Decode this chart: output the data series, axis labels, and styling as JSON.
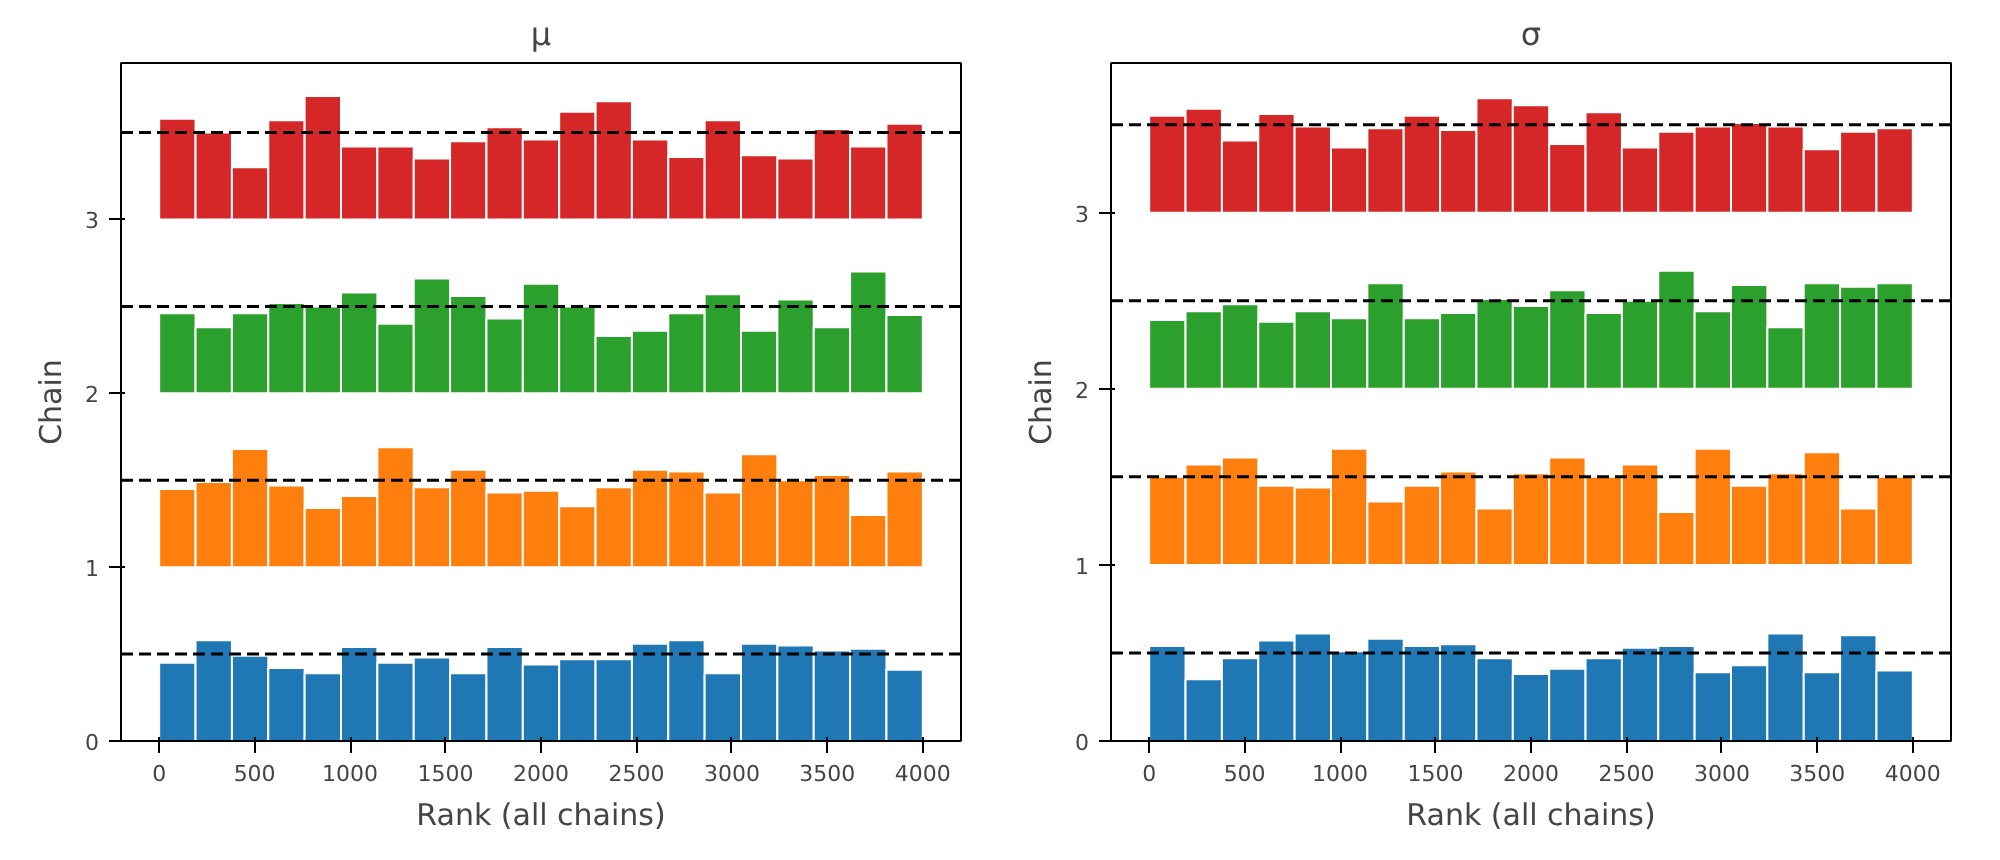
{
  "chart_data": [
    {
      "type": "bar",
      "title": "μ",
      "xlabel": "Rank (all chains)",
      "ylabel": "Chain",
      "xlim": [
        -200,
        4200
      ],
      "xticks": [
        0,
        500,
        1000,
        1500,
        2000,
        2500,
        3000,
        3500,
        4000
      ],
      "ylim": [
        0,
        3.9
      ],
      "yticks": [
        0,
        1,
        2,
        3
      ],
      "grid": false,
      "x": [
        95.2,
        285.7,
        476.2,
        666.7,
        857.1,
        1047.6,
        1238.1,
        1428.6,
        1619.0,
        1809.5,
        2000.0,
        2190.5,
        2381.0,
        2571.4,
        2761.9,
        2952.4,
        3142.9,
        3333.3,
        3523.8,
        3714.3,
        3904.8
      ],
      "series": [
        {
          "color": "#1f77b4",
          "base": [
            0,
            0,
            0,
            0,
            0,
            0,
            0,
            0,
            0,
            0,
            0,
            0,
            0,
            0,
            0,
            0,
            0,
            0,
            0,
            0,
            0
          ],
          "values": [
            0.45,
            0.58,
            0.49,
            0.42,
            0.39,
            0.54,
            0.45,
            0.48,
            0.39,
            0.54,
            0.44,
            0.47,
            0.47,
            0.56,
            0.58,
            0.39,
            0.56,
            0.55,
            0.52,
            0.53,
            0.41
          ]
        },
        {
          "color": "#ff7f0e",
          "base": [
            1,
            1,
            1,
            1,
            1,
            1,
            1,
            1,
            1,
            1,
            1,
            1,
            1,
            1,
            1,
            1,
            1,
            1,
            1,
            1,
            1
          ],
          "values": [
            0.45,
            0.49,
            0.68,
            0.47,
            0.34,
            0.41,
            0.69,
            0.46,
            0.56,
            0.43,
            0.44,
            0.35,
            0.46,
            0.56,
            0.55,
            0.43,
            0.65,
            0.5,
            0.53,
            0.3,
            0.55
          ]
        },
        {
          "color": "#2ca02c",
          "base": [
            2,
            2,
            2,
            2,
            2,
            2,
            2,
            2,
            2,
            2,
            2,
            2,
            2,
            2,
            2,
            2,
            2,
            2,
            2,
            2,
            2
          ],
          "values": [
            0.46,
            0.38,
            0.46,
            0.52,
            0.5,
            0.58,
            0.4,
            0.66,
            0.56,
            0.43,
            0.63,
            0.5,
            0.33,
            0.36,
            0.46,
            0.57,
            0.36,
            0.54,
            0.38,
            0.7,
            0.45
          ]
        },
        {
          "color": "#d62728",
          "base": [
            3,
            3,
            3,
            3,
            3,
            3,
            3,
            3,
            3,
            3,
            3,
            3,
            3,
            3,
            3,
            3,
            3,
            3,
            3,
            3,
            3
          ],
          "values": [
            0.58,
            0.5,
            0.3,
            0.57,
            0.71,
            0.42,
            0.42,
            0.35,
            0.45,
            0.53,
            0.46,
            0.62,
            0.68,
            0.46,
            0.36,
            0.57,
            0.37,
            0.35,
            0.52,
            0.42,
            0.55
          ]
        }
      ],
      "ref_lines": [
        {
          "axis": "y",
          "value": 0.5,
          "color": "#000000",
          "line_style": "dashed"
        },
        {
          "axis": "y",
          "value": 1.5,
          "color": "#000000",
          "line_style": "dashed"
        },
        {
          "axis": "y",
          "value": 2.5,
          "color": "#000000",
          "line_style": "dashed"
        },
        {
          "axis": "y",
          "value": 3.5,
          "color": "#000000",
          "line_style": "dashed"
        }
      ]
    },
    {
      "type": "bar",
      "title": "σ",
      "xlabel": "Rank (all chains)",
      "ylabel": "Chain",
      "xlim": [
        -200,
        4200
      ],
      "xticks": [
        0,
        500,
        1000,
        1500,
        2000,
        2500,
        3000,
        3500,
        4000
      ],
      "ylim": [
        0,
        3.85
      ],
      "yticks": [
        0,
        1,
        2,
        3
      ],
      "grid": false,
      "x": [
        95.2,
        285.7,
        476.2,
        666.7,
        857.1,
        1047.6,
        1238.1,
        1428.6,
        1619.0,
        1809.5,
        2000.0,
        2190.5,
        2381.0,
        2571.4,
        2761.9,
        2952.4,
        3142.9,
        3333.3,
        3523.8,
        3714.3,
        3904.8
      ],
      "series": [
        {
          "color": "#1f77b4",
          "base": [
            0,
            0,
            0,
            0,
            0,
            0,
            0,
            0,
            0,
            0,
            0,
            0,
            0,
            0,
            0,
            0,
            0,
            0,
            0,
            0,
            0
          ],
          "values": [
            0.54,
            0.35,
            0.47,
            0.57,
            0.61,
            0.51,
            0.58,
            0.54,
            0.55,
            0.47,
            0.38,
            0.41,
            0.47,
            0.53,
            0.54,
            0.39,
            0.43,
            0.61,
            0.39,
            0.6,
            0.4
          ]
        },
        {
          "color": "#ff7f0e",
          "base": [
            1,
            1,
            1,
            1,
            1,
            1,
            1,
            1,
            1,
            1,
            1,
            1,
            1,
            1,
            1,
            1,
            1,
            1,
            1,
            1,
            1
          ],
          "values": [
            0.5,
            0.57,
            0.61,
            0.45,
            0.44,
            0.66,
            0.36,
            0.45,
            0.53,
            0.32,
            0.52,
            0.61,
            0.5,
            0.57,
            0.3,
            0.66,
            0.45,
            0.52,
            0.64,
            0.32,
            0.5
          ]
        },
        {
          "color": "#2ca02c",
          "base": [
            2,
            2,
            2,
            2,
            2,
            2,
            2,
            2,
            2,
            2,
            2,
            2,
            2,
            2,
            2,
            2,
            2,
            2,
            2,
            2,
            2
          ],
          "values": [
            0.39,
            0.44,
            0.48,
            0.38,
            0.44,
            0.4,
            0.6,
            0.4,
            0.43,
            0.51,
            0.47,
            0.56,
            0.43,
            0.5,
            0.67,
            0.44,
            0.59,
            0.35,
            0.6,
            0.58,
            0.6
          ]
        },
        {
          "color": "#d62728",
          "base": [
            3,
            3,
            3,
            3,
            3,
            3,
            3,
            3,
            3,
            3,
            3,
            3,
            3,
            3,
            3,
            3,
            3,
            3,
            3,
            3,
            3
          ],
          "values": [
            0.55,
            0.59,
            0.41,
            0.56,
            0.49,
            0.37,
            0.48,
            0.55,
            0.47,
            0.65,
            0.61,
            0.39,
            0.57,
            0.37,
            0.46,
            0.49,
            0.51,
            0.49,
            0.36,
            0.46,
            0.48
          ]
        }
      ],
      "ref_lines": [
        {
          "axis": "y",
          "value": 0.5,
          "color": "#000000",
          "line_style": "dashed"
        },
        {
          "axis": "y",
          "value": 1.5,
          "color": "#000000",
          "line_style": "dashed"
        },
        {
          "axis": "y",
          "value": 2.5,
          "color": "#000000",
          "line_style": "dashed"
        },
        {
          "axis": "y",
          "value": 3.5,
          "color": "#000000",
          "line_style": "dashed"
        }
      ]
    }
  ]
}
